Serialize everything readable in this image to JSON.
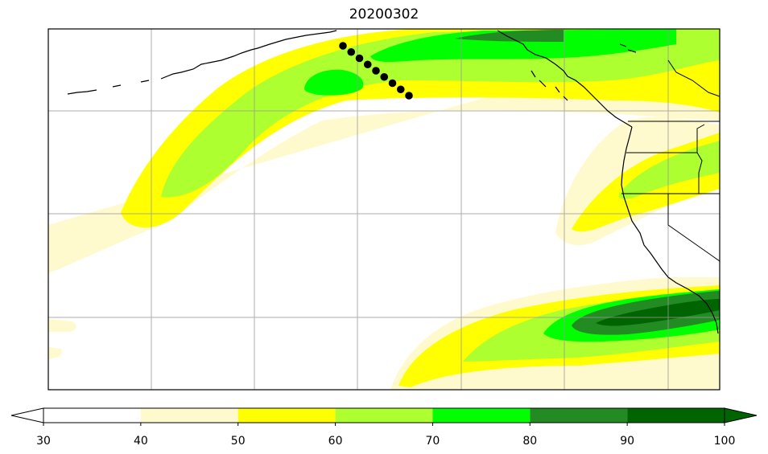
{
  "title": "20200302",
  "colorbar": {
    "ticks": [
      "30",
      "40",
      "50",
      "60",
      "70",
      "80",
      "90",
      "100"
    ],
    "bins": [
      {
        "from": 30,
        "to": 40,
        "color": "#ffffff"
      },
      {
        "from": 40,
        "to": 50,
        "color": "#fffacd"
      },
      {
        "from": 50,
        "to": 60,
        "color": "#ffff00"
      },
      {
        "from": 60,
        "to": 70,
        "color": "#adff2f"
      },
      {
        "from": 70,
        "to": 80,
        "color": "#00ff00"
      },
      {
        "from": 80,
        "to": 90,
        "color": "#228b22"
      },
      {
        "from": 90,
        "to": 100,
        "color": "#006400"
      }
    ],
    "extend": "both"
  },
  "track": {
    "point_count": 9,
    "color": "#000000"
  },
  "gridlines": true
}
